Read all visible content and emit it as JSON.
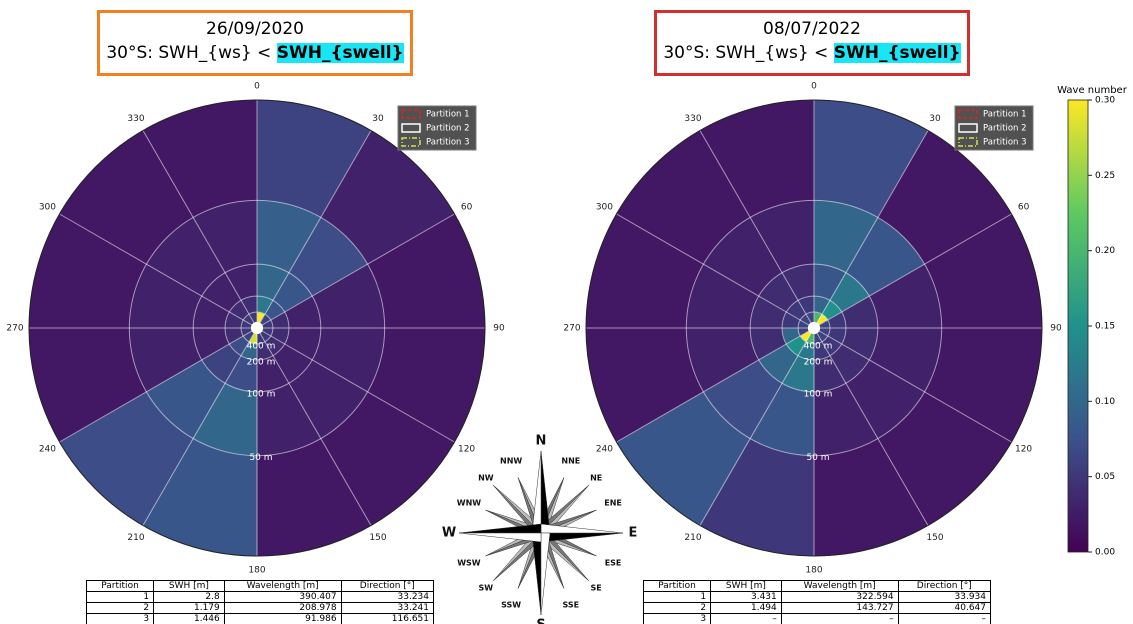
{
  "chart_data": [
    {
      "type": "polar-heatmap",
      "title": "26/09/2020",
      "subtitle": "30°S: SWH_{ws} <",
      "subtitle_highlight": "SWH_{swell}",
      "theta_ticks": [
        0,
        30,
        60,
        90,
        120,
        150,
        180,
        210,
        240,
        270,
        300,
        330
      ],
      "rscale": "reciprocal",
      "rlim": [
        null,
        28
      ],
      "rticks": [
        {
          "value": 400,
          "label": "400 m"
        },
        {
          "value": 200,
          "label": "200 m"
        },
        {
          "value": 100,
          "label": "100 m"
        },
        {
          "value": 50,
          "label": "50 m"
        }
      ],
      "theta_bins": [
        0,
        30,
        60,
        90,
        120,
        150,
        180,
        210,
        240,
        270,
        300,
        330,
        360
      ],
      "r_bins": [
        1000,
        400,
        200,
        100,
        50,
        28
      ],
      "values": [
        [
          0.3,
          0.06,
          0.05,
          0.05,
          0.05,
          0.05,
          0.28,
          0.06,
          0.05,
          0.05,
          0.05,
          0.05
        ],
        [
          0.12,
          0.08,
          0.04,
          0.04,
          0.04,
          0.04,
          0.1,
          0.07,
          0.04,
          0.04,
          0.04,
          0.04
        ],
        [
          0.1,
          0.08,
          0.03,
          0.03,
          0.03,
          0.03,
          0.07,
          0.06,
          0.03,
          0.03,
          0.03,
          0.03
        ],
        [
          0.09,
          0.07,
          0.03,
          0.03,
          0.03,
          0.03,
          0.1,
          0.08,
          0.03,
          0.03,
          0.03,
          0.03
        ],
        [
          0.06,
          0.03,
          0.02,
          0.02,
          0.02,
          0.02,
          0.08,
          0.07,
          0.02,
          0.02,
          0.02,
          0.02
        ]
      ],
      "legend": [
        {
          "name": "Partition 1",
          "color": "#d62728",
          "dash": "dashed"
        },
        {
          "name": "Partition 2",
          "color": "#ffffff",
          "dash": "solid"
        },
        {
          "name": "Partition 3",
          "color": "#d4e157",
          "dash": "dashdot"
        }
      ],
      "table": {
        "header": [
          "Partition",
          "SWH [m]",
          "Wavelength [m]",
          "Direction [°]"
        ],
        "rows": [
          [
            "1",
            "2.8",
            "390.407",
            "33.234"
          ],
          [
            "2",
            "1.179",
            "208.978",
            "33.241"
          ],
          [
            "3",
            "1.446",
            "91.986",
            "116.651"
          ]
        ]
      }
    },
    {
      "type": "polar-heatmap",
      "title": "08/07/2022",
      "subtitle": "30°S: SWH_{ws} <",
      "subtitle_highlight": "SWH_{swell}",
      "theta_ticks": [
        0,
        30,
        60,
        90,
        120,
        150,
        180,
        210,
        240,
        270,
        300,
        330
      ],
      "rscale": "reciprocal",
      "rlim": [
        null,
        28
      ],
      "rticks": [
        {
          "value": 400,
          "label": "400 m"
        },
        {
          "value": 200,
          "label": "200 m"
        },
        {
          "value": 100,
          "label": "100 m"
        },
        {
          "value": 50,
          "label": "50 m"
        }
      ],
      "theta_bins": [
        0,
        30,
        60,
        90,
        120,
        150,
        180,
        210,
        240,
        270,
        300,
        330,
        360
      ],
      "r_bins": [
        1000,
        400,
        200,
        100,
        50,
        28
      ],
      "values": [
        [
          0.2,
          0.3,
          0.06,
          0.06,
          0.06,
          0.06,
          0.2,
          0.3,
          0.06,
          0.06,
          0.06,
          0.06
        ],
        [
          0.1,
          0.15,
          0.05,
          0.05,
          0.05,
          0.05,
          0.12,
          0.15,
          0.1,
          0.05,
          0.05,
          0.05
        ],
        [
          0.08,
          0.12,
          0.04,
          0.04,
          0.04,
          0.04,
          0.12,
          0.1,
          0.04,
          0.04,
          0.04,
          0.04
        ],
        [
          0.1,
          0.08,
          0.03,
          0.03,
          0.03,
          0.03,
          0.08,
          0.07,
          0.03,
          0.03,
          0.03,
          0.03
        ],
        [
          0.07,
          0.02,
          0.02,
          0.02,
          0.02,
          0.02,
          0.05,
          0.08,
          0.02,
          0.02,
          0.02,
          0.02
        ]
      ],
      "legend": [
        {
          "name": "Partition 1",
          "color": "#d62728",
          "dash": "dashed"
        },
        {
          "name": "Partition 2",
          "color": "#ffffff",
          "dash": "solid"
        },
        {
          "name": "Partition 3",
          "color": "#d4e157",
          "dash": "dashdot"
        }
      ],
      "table": {
        "header": [
          "Partition",
          "SWH [m]",
          "Wavelength [m]",
          "Direction [°]"
        ],
        "rows": [
          [
            "1",
            "3.431",
            "322.594",
            "33.934"
          ],
          [
            "2",
            "1.494",
            "143.727",
            "40.647"
          ],
          [
            "3",
            "–",
            "–",
            "–"
          ]
        ]
      }
    }
  ],
  "colorbar": {
    "label": "Wave number",
    "colormap": "viridis",
    "clim": [
      0,
      0.3
    ],
    "ticks": [
      {
        "value": 0,
        "label": "0.00"
      },
      {
        "value": 0.05,
        "label": "0.05"
      },
      {
        "value": 0.1,
        "label": "0.10"
      },
      {
        "value": 0.15,
        "label": "0.15"
      },
      {
        "value": 0.2,
        "label": "0.20"
      },
      {
        "value": 0.25,
        "label": "0.25"
      },
      {
        "value": 0.3,
        "label": "0.30"
      }
    ]
  },
  "compass": {
    "labels": [
      "N",
      "NNE",
      "NE",
      "ENE",
      "E",
      "ESE",
      "SE",
      "SSE",
      "S",
      "SSW",
      "SW",
      "WSW",
      "W",
      "WNW",
      "NW",
      "NNW"
    ]
  }
}
